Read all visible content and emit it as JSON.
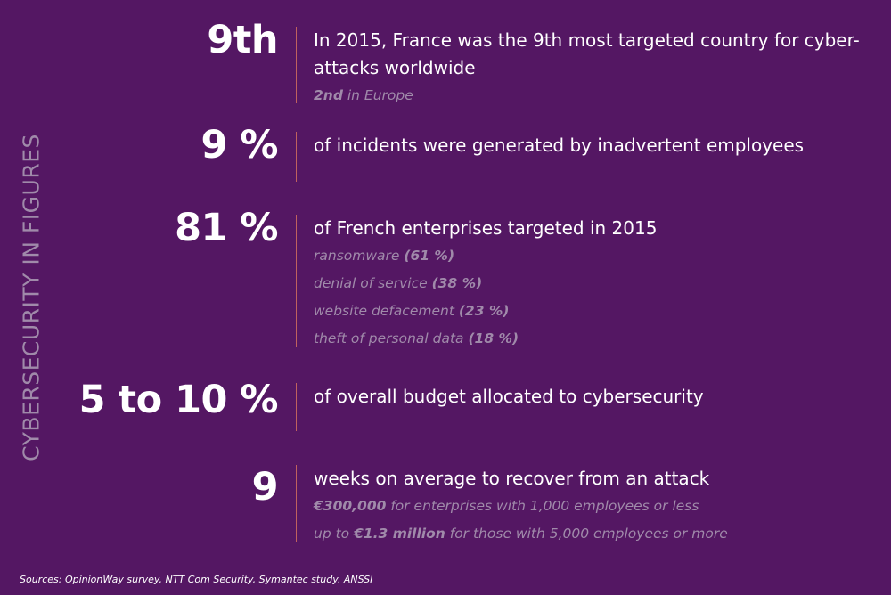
{
  "side_title": "CYBERSECURITY IN FIGURES",
  "stats": [
    {
      "figure": "9th",
      "headline": "In 2015, France was the 9th most targeted country for cyber-attacks worldwide",
      "details": [
        {
          "strong": "2nd",
          "rest": " in Europe"
        }
      ]
    },
    {
      "figure": "9 %",
      "headline": "of incidents were generated by inadvertent employees",
      "details": []
    },
    {
      "figure": "81 %",
      "headline": "of French enterprises targeted in 2015",
      "details": [
        {
          "pre": "ransomware ",
          "strong": "(61 %)"
        },
        {
          "pre": "denial of service ",
          "strong": "(38 %)"
        },
        {
          "pre": "website defacement ",
          "strong": "(23 %)"
        },
        {
          "pre": "theft of personal data ",
          "strong": "(18 %)"
        }
      ]
    },
    {
      "figure": "5 to 10 %",
      "headline": "of overall budget allocated to cybersecurity",
      "details": []
    },
    {
      "figure": "9",
      "headline": "weeks on average to recover from an attack",
      "details": [
        {
          "strong": "€300,000",
          "rest": " for enterprises with 1,000 employees or less"
        },
        {
          "pre": "up to ",
          "strong": "€1.3 million",
          "rest": " for those with 5,000 employees or more"
        }
      ]
    }
  ],
  "sources": "Sources: OpinionWay survey, NTT Com Security, Symantec study, ANSSI"
}
